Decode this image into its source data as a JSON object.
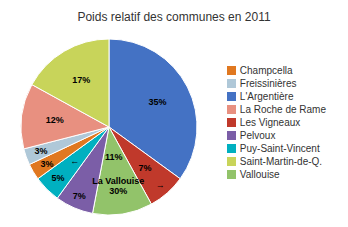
{
  "chart_data": {
    "type": "pie",
    "title": "Poids relatif des communes en 2011",
    "categories": [
      "L'Argentière",
      "Les Vigneaux",
      "Vallouise",
      "Pelvoux",
      "Puy-Saint-Vincent",
      "Champcella",
      "Freissinières",
      "La Roche de Rame",
      "Saint-Martin-de-Q."
    ],
    "values": [
      35,
      7,
      11,
      7,
      5,
      3,
      3,
      12,
      17
    ],
    "value_labels": [
      "35%",
      "7%",
      "11%",
      "7%",
      "5%",
      "3%",
      "3%",
      "12%",
      "17%"
    ],
    "colors": [
      "#4472C4",
      "#C0392B",
      "#92C36A",
      "#7B5EA7",
      "#00B0C0",
      "#E07820",
      "#AFC8D8",
      "#E89080",
      "#C8D45A"
    ],
    "data_labels": true,
    "legend": "right",
    "annotations": [
      {
        "text": "La Vallouise\n30%",
        "category": "Vallouise"
      },
      {
        "text": "←",
        "category": "Puy-Saint-Vincent"
      },
      {
        "text": "→",
        "category": "Les Vigneaux"
      }
    ]
  }
}
